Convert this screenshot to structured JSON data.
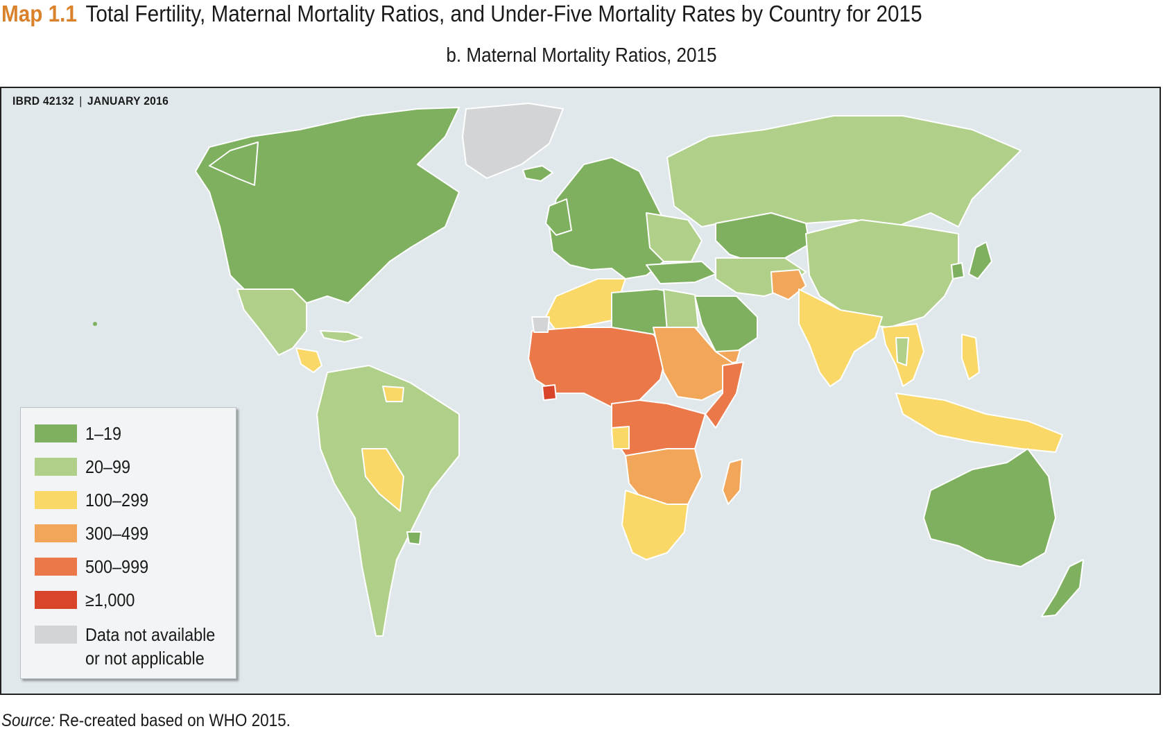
{
  "header": {
    "map_number": "Map 1.1",
    "title": "Total Fertility, Maternal Mortality Ratios, and Under-Five Mortality Rates by Country for 2015",
    "subtitle": "b. Maternal Mortality Ratios, 2015"
  },
  "map": {
    "map_id": "IBRD 42132",
    "date": "JANUARY 2016",
    "ocean_color": "#e1e8ec"
  },
  "legend": {
    "items": [
      {
        "label": "1–19",
        "color": "#7fb05f"
      },
      {
        "label": "20–99",
        "color": "#b0d08a"
      },
      {
        "label": "100–299",
        "color": "#fad868"
      },
      {
        "label": "300–499",
        "color": "#f2a65a"
      },
      {
        "label": "500–999",
        "color": "#ea7848"
      },
      {
        "label": "≥1,000",
        "color": "#d8452a"
      },
      {
        "label_line1": "Data not available",
        "label_line2": "or not applicable",
        "color": "#d2d4d6"
      }
    ]
  },
  "source": {
    "prefix": "Source:",
    "text": "Re-created based on WHO 2015."
  }
}
